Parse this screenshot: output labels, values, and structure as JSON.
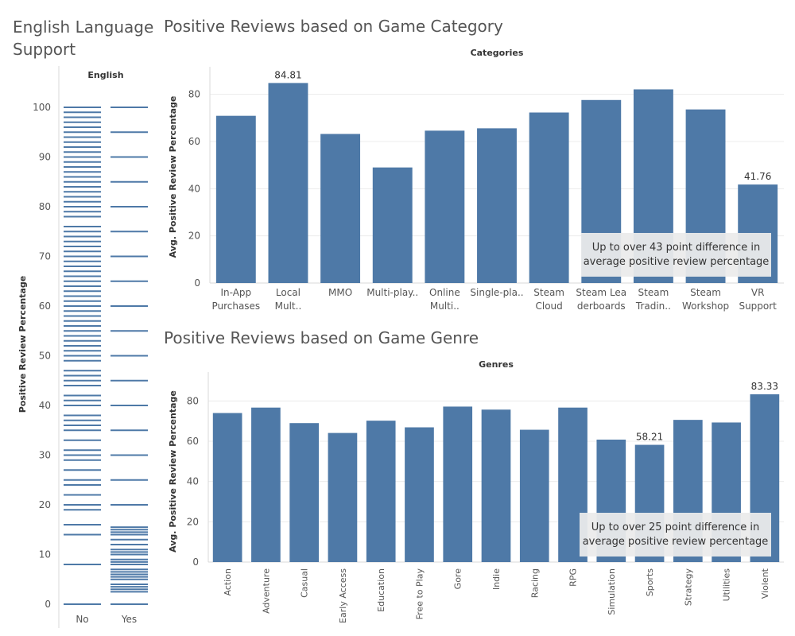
{
  "dashboard": {
    "english_title_line1": "English Language",
    "english_title_line2": "Support",
    "categories_title": "Positive Reviews based on Game Category",
    "genres_title": "Positive Reviews based on Game Genre"
  },
  "colors": {
    "bar": "#4e79a7",
    "grid": "#ececec",
    "axis": "#d9d9d9",
    "text": "#555555",
    "annotation_bg": "#ebebeb"
  },
  "chart_data": [
    {
      "type": "strip",
      "header": "English",
      "ylabel": "Positive Review Percentage",
      "ylim": [
        0,
        100
      ],
      "yticks": [
        0,
        10,
        20,
        30,
        40,
        50,
        60,
        70,
        80,
        90,
        100
      ],
      "categories": [
        "No",
        "Yes"
      ],
      "series": [
        {
          "category": "No",
          "values": [
            0,
            8,
            14,
            16,
            19,
            20,
            22,
            24,
            25,
            27,
            29,
            30,
            31,
            33,
            35,
            36,
            37,
            38,
            40,
            41,
            42,
            44,
            45,
            46,
            47,
            49,
            50,
            51,
            52,
            53,
            54,
            55,
            56,
            57,
            58,
            59,
            60,
            61,
            62,
            63,
            64,
            65,
            66,
            67,
            68,
            69,
            70,
            71,
            72,
            73,
            74,
            75,
            76,
            78,
            79,
            80,
            81,
            82,
            83,
            84,
            85,
            86,
            87,
            88,
            89,
            90,
            91,
            92,
            93,
            94,
            95,
            96,
            97,
            98,
            99,
            100
          ]
        },
        {
          "category": "Yes",
          "values": [
            0,
            2.5,
            3,
            3.5,
            4,
            5,
            5.5,
            6,
            6.5,
            7,
            8,
            8.5,
            9,
            10,
            10.5,
            11,
            12,
            13,
            14,
            14.5,
            15,
            15.5,
            20,
            25,
            30,
            35,
            40,
            45,
            50,
            55,
            60,
            65,
            70,
            75,
            80,
            85,
            90,
            95,
            100
          ]
        }
      ]
    },
    {
      "type": "bar",
      "header": "Categories",
      "ylabel": "Avg. Positive Review Percentage",
      "ylim": [
        0,
        90
      ],
      "yticks": [
        0,
        20,
        40,
        60,
        80
      ],
      "categories": [
        "In-App Purchases",
        "Local Mult..",
        "MMO",
        "Multi-play..",
        "Online Multi..",
        "Single-pla..",
        "Steam Cloud",
        "Steam Leaderboards",
        "Steam Tradin..",
        "Steam Workshop",
        "VR Support"
      ],
      "tick_lines": [
        [
          "In-App",
          "Purchases"
        ],
        [
          "Local",
          "Mult.."
        ],
        [
          "MMO"
        ],
        [
          "Multi-play.."
        ],
        [
          "Online",
          "Multi.."
        ],
        [
          "Single-pla.."
        ],
        [
          "Steam",
          "Cloud"
        ],
        [
          "Steam Lea",
          "derboards"
        ],
        [
          "Steam",
          "Tradin.."
        ],
        [
          "Steam",
          "Workshop"
        ],
        [
          "VR",
          "Support"
        ]
      ],
      "values": [
        70.9,
        84.81,
        63.2,
        49.0,
        64.6,
        65.6,
        72.3,
        77.6,
        82.1,
        73.6,
        41.76
      ],
      "data_labels": [
        {
          "index": 1,
          "text": "84.81"
        },
        {
          "index": 10,
          "text": "41.76"
        }
      ],
      "annotation": [
        "Up to over 43 point difference in",
        "average positive review percentage"
      ]
    },
    {
      "type": "bar",
      "header": "Genres",
      "ylabel": "Avg. Positive Review Percentage",
      "ylim": [
        0,
        90
      ],
      "yticks": [
        0,
        20,
        40,
        60,
        80
      ],
      "categories": [
        "Action",
        "Adventure",
        "Casual",
        "Early Access",
        "Education",
        "Free to Play",
        "Gore",
        "Indie",
        "Racing",
        "RPG",
        "Simulation",
        "Sports",
        "Strategy",
        "Utilities",
        "Violent"
      ],
      "values": [
        74.0,
        76.7,
        69.0,
        64.1,
        70.2,
        66.9,
        77.2,
        75.7,
        65.7,
        76.7,
        60.8,
        58.21,
        70.6,
        69.3,
        83.33
      ],
      "data_labels": [
        {
          "index": 11,
          "text": "58.21"
        },
        {
          "index": 14,
          "text": "83.33"
        }
      ],
      "annotation": [
        "Up to over 25 point difference in",
        "average positive review percentage"
      ]
    }
  ]
}
